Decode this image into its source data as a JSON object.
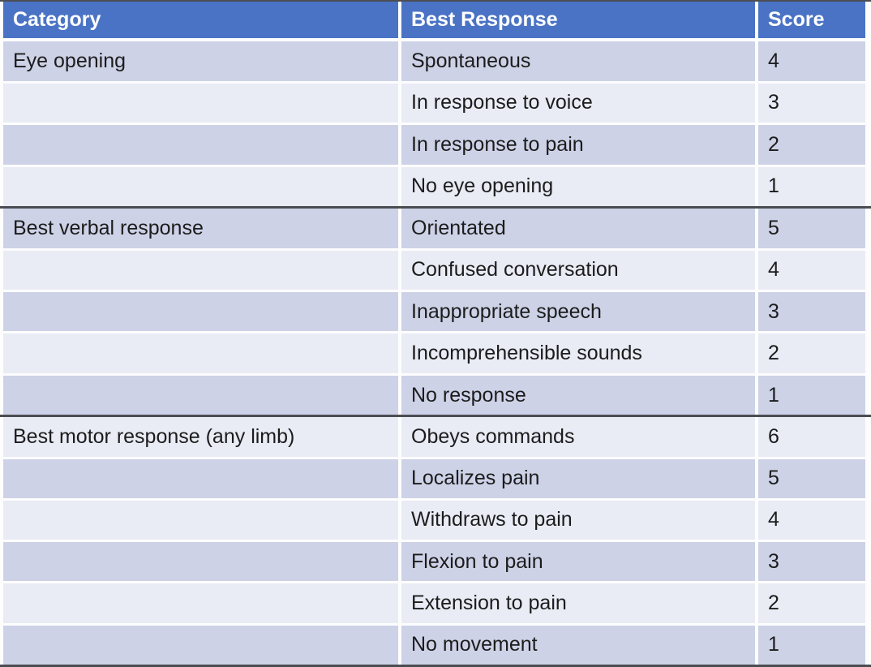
{
  "title": "Glasgow Coma Scale table",
  "colors": {
    "header_bg": "#4A73C5",
    "header_text": "#FFFFFF",
    "band_dark": "#CDD2E7",
    "band_light": "#E9EBF5",
    "rule_dark": "#4B4D52",
    "gap_white": "#FDFDFE",
    "body_text": "#1C1C1C"
  },
  "table": {
    "columns": [
      "Category",
      "Best Response",
      "Score"
    ],
    "sections": [
      {
        "category": "Eye opening",
        "rows": [
          {
            "response": "Spontaneous",
            "score": "4"
          },
          {
            "response": "In response to voice",
            "score": "3"
          },
          {
            "response": "In response to pain",
            "score": "2"
          },
          {
            "response": "No eye opening",
            "score": "1"
          }
        ]
      },
      {
        "category": "Best verbal response",
        "rows": [
          {
            "response": "Orientated",
            "score": "5"
          },
          {
            "response": "Confused conversation",
            "score": "4"
          },
          {
            "response": "Inappropriate speech",
            "score": "3"
          },
          {
            "response": "Incomprehensible sounds",
            "score": "2"
          },
          {
            "response": "No response",
            "score": "1"
          }
        ]
      },
      {
        "category": "Best motor response (any limb)",
        "rows": [
          {
            "response": "Obeys commands",
            "score": "6"
          },
          {
            "response": "Localizes pain",
            "score": "5"
          },
          {
            "response": "Withdraws to pain",
            "score": "4"
          },
          {
            "response": "Flexion to pain",
            "score": "3"
          },
          {
            "response": "Extension to pain",
            "score": "2"
          },
          {
            "response": "No movement",
            "score": "1"
          }
        ]
      }
    ]
  }
}
